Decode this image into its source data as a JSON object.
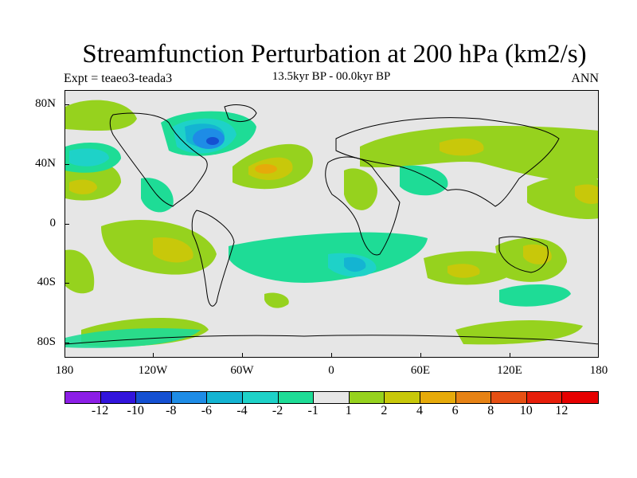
{
  "title": "Streamfunction Perturbation at 200 hPa (km2/s)",
  "expt": "Expt = teaeo3-teada3",
  "period": "13.5kyr BP - 00.0kyr BP",
  "season": "ANN",
  "lat_labels": [
    "80N",
    "40N",
    "0",
    "40S",
    "80S"
  ],
  "lon_labels": [
    "180",
    "120W",
    "60W",
    "0",
    "60E",
    "120E",
    "180"
  ],
  "colorbar": {
    "labels": [
      "-12",
      "-10",
      "-8",
      "-6",
      "-4",
      "-2",
      "-1",
      "1",
      "2",
      "4",
      "6",
      "8",
      "10",
      "12"
    ],
    "colors": [
      "#8c1ee6",
      "#3214dc",
      "#1450d2",
      "#1e8ce6",
      "#14b4d2",
      "#1ed2c8",
      "#1edc96",
      "#e6e6e6",
      "#96d21e",
      "#c8c80a",
      "#e6aa0a",
      "#e68214",
      "#e65014",
      "#e61e0a",
      "#e60000"
    ]
  }
}
